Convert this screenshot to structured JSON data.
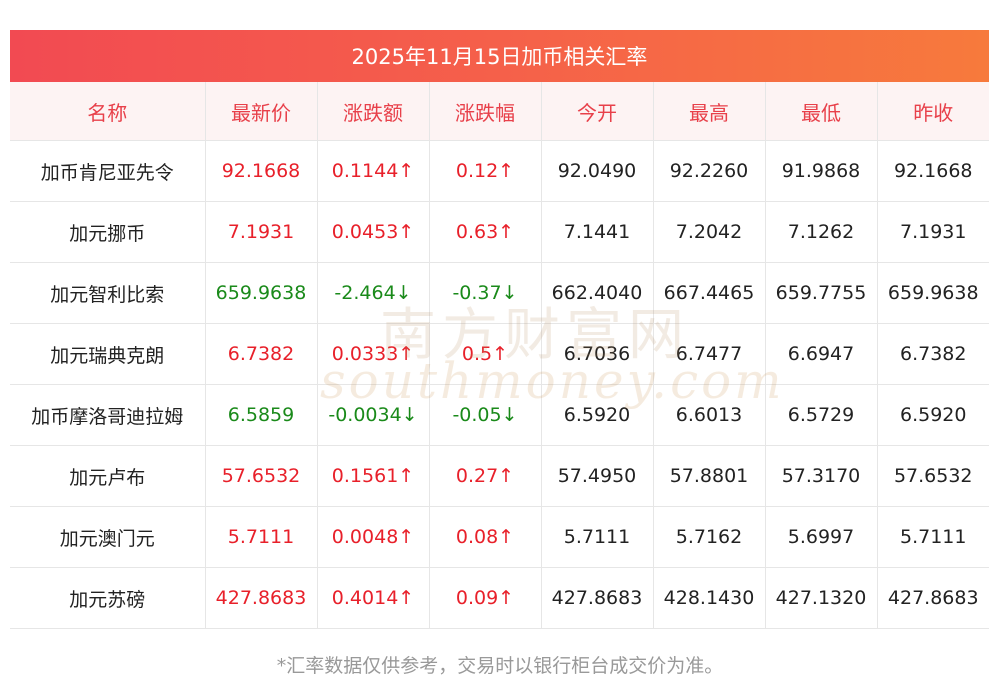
{
  "title": "2025年11月15日加币相关汇率",
  "headers": [
    "名称",
    "最新价",
    "涨跌额",
    "涨跌幅",
    "今开",
    "最高",
    "最低",
    "昨收"
  ],
  "rows": [
    {
      "name": "加币肯尼亚先令",
      "latest": "92.1668",
      "change": "0.1144↑",
      "pct": "0.12↑",
      "open": "92.0490",
      "high": "92.2260",
      "low": "91.9868",
      "prev": "92.1668",
      "dir": "up"
    },
    {
      "name": "加元挪币",
      "latest": "7.1931",
      "change": "0.0453↑",
      "pct": "0.63↑",
      "open": "7.1441",
      "high": "7.2042",
      "low": "7.1262",
      "prev": "7.1931",
      "dir": "up"
    },
    {
      "name": "加元智利比索",
      "latest": "659.9638",
      "change": "-2.464↓",
      "pct": "-0.37↓",
      "open": "662.4040",
      "high": "667.4465",
      "low": "659.7755",
      "prev": "659.9638",
      "dir": "down"
    },
    {
      "name": "加元瑞典克朗",
      "latest": "6.7382",
      "change": "0.0333↑",
      "pct": "0.5↑",
      "open": "6.7036",
      "high": "6.7477",
      "low": "6.6947",
      "prev": "6.7382",
      "dir": "up"
    },
    {
      "name": "加币摩洛哥迪拉姆",
      "latest": "6.5859",
      "change": "-0.0034↓",
      "pct": "-0.05↓",
      "open": "6.5920",
      "high": "6.6013",
      "low": "6.5729",
      "prev": "6.5920",
      "dir": "down"
    },
    {
      "name": "加元卢布",
      "latest": "57.6532",
      "change": "0.1561↑",
      "pct": "0.27↑",
      "open": "57.4950",
      "high": "57.8801",
      "low": "57.3170",
      "prev": "57.6532",
      "dir": "up"
    },
    {
      "name": "加元澳门元",
      "latest": "5.7111",
      "change": "0.0048↑",
      "pct": "0.08↑",
      "open": "5.7111",
      "high": "5.7162",
      "low": "5.6997",
      "prev": "5.7111",
      "dir": "up"
    },
    {
      "name": "加元苏磅",
      "latest": "427.8683",
      "change": "0.4014↑",
      "pct": "0.09↑",
      "open": "427.8683",
      "high": "428.1430",
      "low": "427.1320",
      "prev": "427.8683",
      "dir": "up"
    }
  ],
  "watermark": {
    "cn": "南方财富网",
    "en": "southmoney.com"
  },
  "footnote": "*汇率数据仅供参考，交易时以银行柜台成交价为准。",
  "colors": {
    "up": "#e8202a",
    "down": "#1a8a1a",
    "header_text": "#e8404a",
    "title_bg_start": "#f24a52",
    "title_bg_end": "#f77a3c"
  }
}
